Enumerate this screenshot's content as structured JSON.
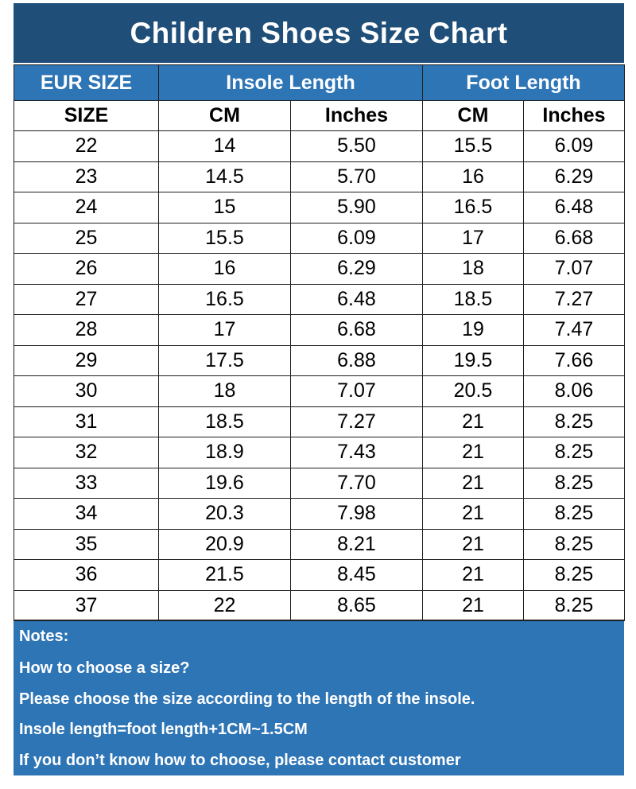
{
  "title": "Children Shoes Size Chart",
  "header": {
    "eur_size": "EUR SIZE",
    "insole_length": "Insole Length",
    "foot_length": "Foot Length"
  },
  "subheader": {
    "size": "SIZE",
    "insole_cm": "CM",
    "insole_inches": "Inches",
    "foot_cm": "CM",
    "foot_inches": "Inches"
  },
  "rows": [
    [
      "22",
      "14",
      "5.50",
      "15.5",
      "6.09"
    ],
    [
      "23",
      "14.5",
      "5.70",
      "16",
      "6.29"
    ],
    [
      "24",
      "15",
      "5.90",
      "16.5",
      "6.48"
    ],
    [
      "25",
      "15.5",
      "6.09",
      "17",
      "6.68"
    ],
    [
      "26",
      "16",
      "6.29",
      "18",
      "7.07"
    ],
    [
      "27",
      "16.5",
      "6.48",
      "18.5",
      "7.27"
    ],
    [
      "28",
      "17",
      "6.68",
      "19",
      "7.47"
    ],
    [
      "29",
      "17.5",
      "6.88",
      "19.5",
      "7.66"
    ],
    [
      "30",
      "18",
      "7.07",
      "20.5",
      "8.06"
    ],
    [
      "31",
      "18.5",
      "7.27",
      "21",
      "8.25"
    ],
    [
      "32",
      "18.9",
      "7.43",
      "21",
      "8.25"
    ],
    [
      "33",
      "19.6",
      "7.70",
      "21",
      "8.25"
    ],
    [
      "34",
      "20.3",
      "7.98",
      "21",
      "8.25"
    ],
    [
      "35",
      "20.9",
      "8.21",
      "21",
      "8.25"
    ],
    [
      "36",
      "21.5",
      "8.45",
      "21",
      "8.25"
    ],
    [
      "37",
      "22",
      "8.65",
      "21",
      "8.25"
    ]
  ],
  "notes": [
    "Notes:",
    "How to choose a size?",
    "Please choose the size according to the length of the insole.",
    "Insole length=foot length+1CM~1.5CM",
    "If you don’t know how to choose, please contact customer"
  ],
  "colors": {
    "title_bg": "#1f4e79",
    "header_bg": "#2e75b6",
    "notes_bg": "#2e75b6",
    "text_light": "#ffffff"
  }
}
